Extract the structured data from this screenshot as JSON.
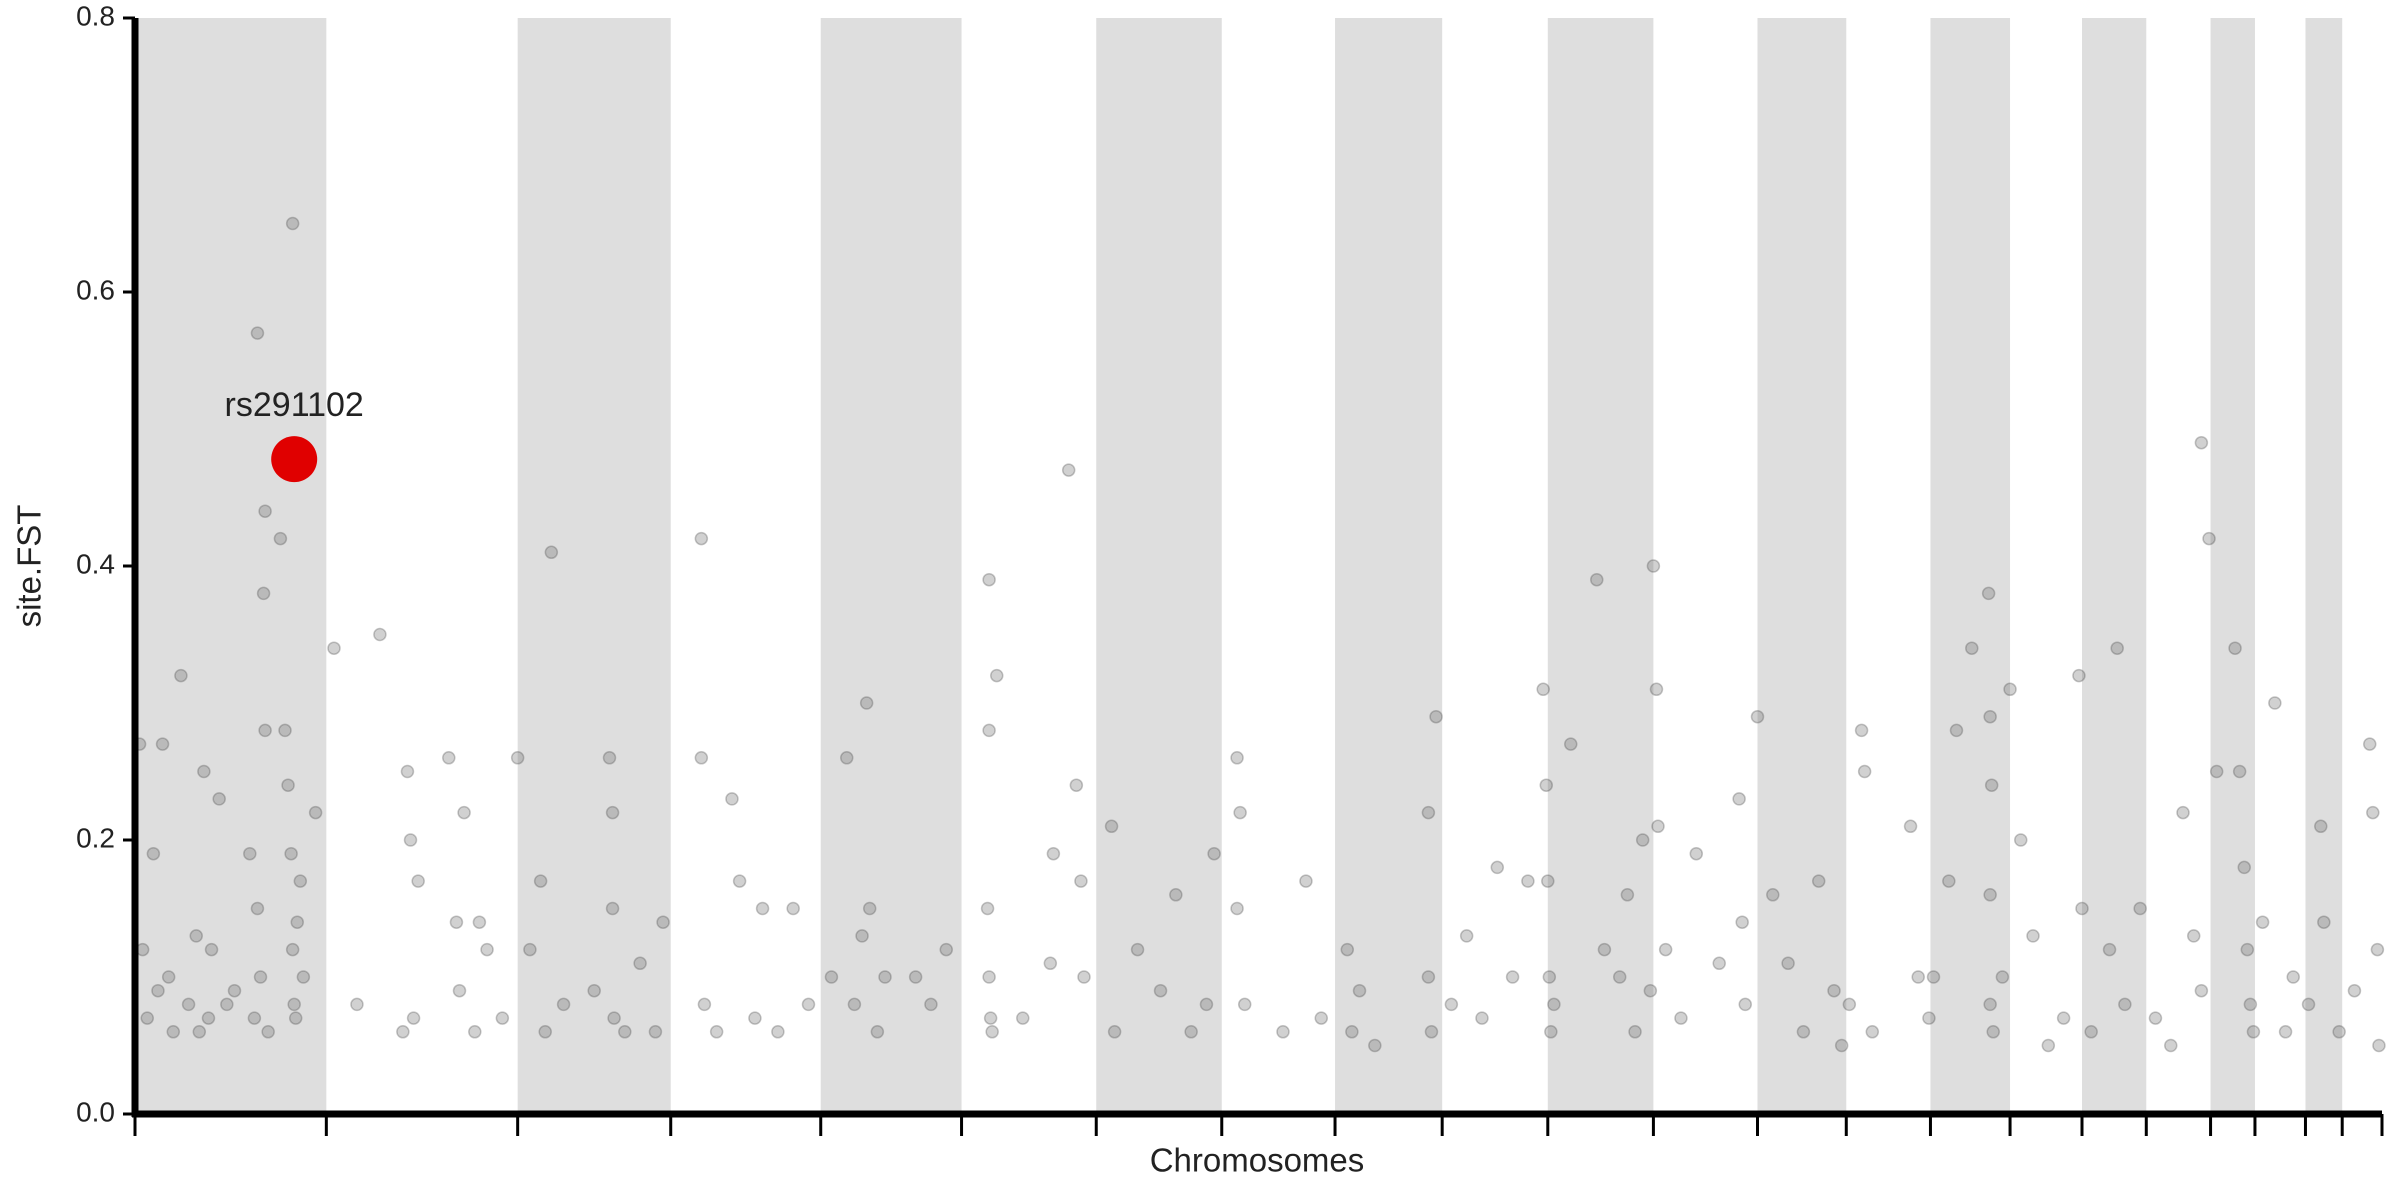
{
  "chart_data": {
    "type": "scatter",
    "x_label": "Chromosomes",
    "y_label": "site.FST",
    "xlim": [
      0,
      1468
    ],
    "ylim": [
      0,
      0.8
    ],
    "xticks": [
      0,
      125,
      250,
      350,
      448,
      540,
      628,
      710,
      784,
      854,
      923,
      992,
      1060,
      1118,
      1173,
      1225,
      1272,
      1314,
      1356,
      1385,
      1418,
      1442,
      1468
    ],
    "yticks": [
      {
        "value": 0,
        "label": "0.0"
      },
      0.2,
      0.4,
      0.6,
      0.8
    ],
    "band_color": "#dedede",
    "color": "#666666",
    "x": [
      3,
      5,
      8,
      12,
      18,
      22,
      30,
      35,
      40,
      45,
      50,
      55,
      25,
      15,
      42,
      48,
      60,
      75,
      80,
      85,
      84,
      85,
      82,
      78,
      80,
      87,
      95,
      98,
      100,
      103,
      102,
      103,
      104,
      105,
      106,
      108,
      110,
      118,
      65,
      130,
      160,
      145,
      178,
      180,
      182,
      185,
      175,
      205,
      210,
      212,
      215,
      225,
      230,
      240,
      222,
      250,
      258,
      265,
      272,
      268,
      280,
      300,
      310,
      312,
      312,
      313,
      320,
      330,
      345,
      340,
      370,
      370,
      372,
      380,
      390,
      395,
      405,
      410,
      420,
      430,
      440,
      455,
      465,
      470,
      475,
      478,
      480,
      485,
      490,
      510,
      520,
      530,
      558,
      558,
      557,
      558,
      559,
      560,
      563,
      580,
      600,
      610,
      615,
      618,
      620,
      598,
      638,
      640,
      655,
      670,
      680,
      690,
      700,
      705,
      720,
      722,
      720,
      725,
      750,
      765,
      775,
      792,
      795,
      800,
      810,
      845,
      850,
      845,
      847,
      860,
      870,
      880,
      890,
      900,
      910,
      920,
      922,
      923,
      924,
      925,
      927,
      938,
      955,
      960,
      970,
      975,
      980,
      985,
      992,
      994,
      995,
      990,
      1000,
      1010,
      1020,
      1035,
      1048,
      1050,
      1052,
      1060,
      1070,
      1080,
      1090,
      1100,
      1110,
      1115,
      1120,
      1128,
      1130,
      1135,
      1165,
      1172,
      1160,
      1175,
      1185,
      1190,
      1200,
      1211,
      1212,
      1213,
      1212,
      1212,
      1214,
      1225,
      1220,
      1232,
      1240,
      1250,
      1260,
      1270,
      1272,
      1278,
      1290,
      1295,
      1300,
      1310,
      1320,
      1330,
      1338,
      1345,
      1350,
      1355,
      1350,
      1360,
      1372,
      1375,
      1378,
      1380,
      1382,
      1384,
      1390,
      1398,
      1405,
      1410,
      1420,
      1428,
      1430,
      1440,
      1450,
      1460,
      1462,
      1465,
      1466
    ],
    "y": [
      0.27,
      0.12,
      0.07,
      0.19,
      0.27,
      0.1,
      0.32,
      0.08,
      0.13,
      0.25,
      0.12,
      0.23,
      0.06,
      0.09,
      0.06,
      0.07,
      0.08,
      0.19,
      0.57,
      0.44,
      0.38,
      0.28,
      0.1,
      0.07,
      0.15,
      0.06,
      0.42,
      0.28,
      0.24,
      0.65,
      0.19,
      0.12,
      0.08,
      0.07,
      0.14,
      0.17,
      0.1,
      0.22,
      0.09,
      0.34,
      0.35,
      0.08,
      0.25,
      0.2,
      0.07,
      0.17,
      0.06,
      0.26,
      0.14,
      0.09,
      0.22,
      0.14,
      0.12,
      0.07,
      0.06,
      0.26,
      0.12,
      0.17,
      0.41,
      0.06,
      0.08,
      0.09,
      0.26,
      0.22,
      0.15,
      0.07,
      0.06,
      0.11,
      0.14,
      0.06,
      0.42,
      0.26,
      0.08,
      0.06,
      0.23,
      0.17,
      0.07,
      0.15,
      0.06,
      0.15,
      0.08,
      0.1,
      0.26,
      0.08,
      0.13,
      0.3,
      0.15,
      0.06,
      0.1,
      0.1,
      0.08,
      0.12,
      0.39,
      0.28,
      0.15,
      0.1,
      0.07,
      0.06,
      0.32,
      0.07,
      0.19,
      0.47,
      0.24,
      0.17,
      0.1,
      0.11,
      0.21,
      0.06,
      0.12,
      0.09,
      0.16,
      0.06,
      0.08,
      0.19,
      0.26,
      0.22,
      0.15,
      0.08,
      0.06,
      0.17,
      0.07,
      0.12,
      0.06,
      0.09,
      0.05,
      0.22,
      0.29,
      0.1,
      0.06,
      0.08,
      0.13,
      0.07,
      0.18,
      0.1,
      0.17,
      0.31,
      0.24,
      0.17,
      0.1,
      0.06,
      0.08,
      0.27,
      0.39,
      0.12,
      0.1,
      0.16,
      0.06,
      0.2,
      0.4,
      0.31,
      0.21,
      0.09,
      0.12,
      0.07,
      0.19,
      0.11,
      0.23,
      0.14,
      0.08,
      0.29,
      0.16,
      0.11,
      0.06,
      0.17,
      0.09,
      0.05,
      0.08,
      0.28,
      0.25,
      0.06,
      0.1,
      0.07,
      0.21,
      0.1,
      0.17,
      0.28,
      0.34,
      0.38,
      0.29,
      0.24,
      0.16,
      0.08,
      0.06,
      0.31,
      0.1,
      0.2,
      0.13,
      0.05,
      0.07,
      0.32,
      0.15,
      0.06,
      0.12,
      0.34,
      0.08,
      0.15,
      0.07,
      0.05,
      0.22,
      0.13,
      0.49,
      0.42,
      0.09,
      0.25,
      0.34,
      0.25,
      0.18,
      0.12,
      0.08,
      0.06,
      0.14,
      0.3,
      0.06,
      0.1,
      0.08,
      0.21,
      0.14,
      0.06,
      0.09,
      0.27,
      0.22,
      0.12,
      0.05
    ],
    "annotations": [
      {
        "text": "rs291102",
        "x": 104,
        "y": 0.478,
        "color": "#e00000"
      }
    ]
  }
}
